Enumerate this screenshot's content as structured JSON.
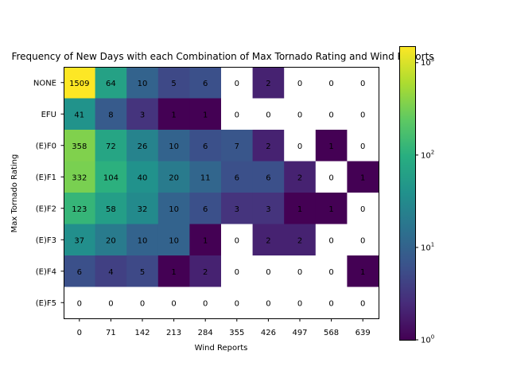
{
  "chart_data": {
    "type": "heatmap",
    "title": "Frequency of New Days with each Combination of Max Tornado Rating and Wind Reports",
    "xlabel": "Wind Reports",
    "ylabel": "Max Tornado Rating",
    "x_categories": [
      "0",
      "71",
      "142",
      "213",
      "284",
      "355",
      "426",
      "497",
      "568",
      "639"
    ],
    "y_categories": [
      "NONE",
      "EFU",
      "(E)F0",
      "(E)F1",
      "(E)F2",
      "(E)F3",
      "(E)F4",
      "(E)F5"
    ],
    "values": [
      [
        1509,
        64,
        10,
        5,
        6,
        0,
        2,
        0,
        0,
        0
      ],
      [
        41,
        8,
        3,
        1,
        1,
        0,
        0,
        0,
        0,
        0
      ],
      [
        358,
        72,
        26,
        10,
        6,
        7,
        2,
        0,
        1,
        0
      ],
      [
        332,
        104,
        40,
        20,
        11,
        6,
        6,
        2,
        0,
        1
      ],
      [
        123,
        58,
        32,
        10,
        6,
        3,
        3,
        1,
        1,
        0
      ],
      [
        37,
        20,
        10,
        10,
        1,
        0,
        2,
        2,
        0,
        0
      ],
      [
        6,
        4,
        5,
        1,
        2,
        0,
        0,
        0,
        0,
        1
      ],
      [
        0,
        0,
        0,
        0,
        0,
        0,
        0,
        0,
        0,
        0
      ]
    ],
    "color_scale": "log",
    "colormap": "viridis",
    "zero_color": "#ffffff",
    "colorbar": {
      "range": [
        1,
        1509
      ],
      "tick_values": [
        1,
        10,
        100,
        1000
      ],
      "tick_labels": [
        "10^0",
        "10^1",
        "10^2",
        "10^3"
      ]
    },
    "grid": false,
    "legend": "colorbar-right"
  }
}
